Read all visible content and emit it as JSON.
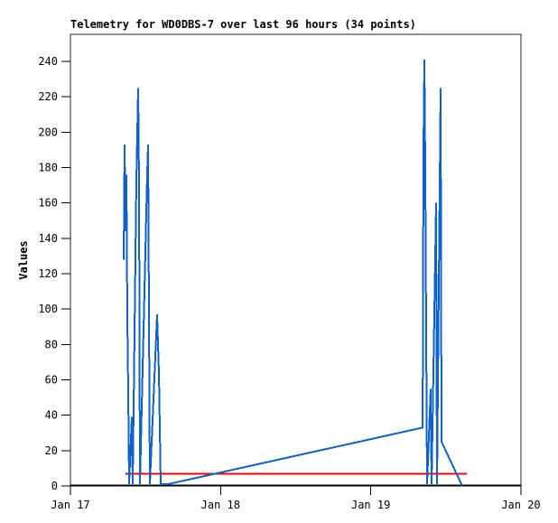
{
  "title": "Telemetry for WD0DBS-7 over last 96 hours (34 points)",
  "colors": {
    "background": "#ffffff",
    "frame": "#222222",
    "axis": "#000000",
    "series_blue": "#0d63c9",
    "threshold_red": "#ff0000",
    "text": "#000000"
  },
  "chart_data": {
    "type": "line",
    "title": "Telemetry for WD0DBS-7 over last 96 hours (34 points)",
    "xlabel": "",
    "ylabel": "Values",
    "ylim": [
      0,
      255
    ],
    "grid": false,
    "legend": "none",
    "y_ticks": [
      0,
      20,
      40,
      60,
      80,
      100,
      120,
      140,
      160,
      180,
      200,
      220,
      240
    ],
    "x_range_days": [
      0,
      3
    ],
    "x_ticks_days": [
      0,
      1,
      2,
      3
    ],
    "x_tick_labels": [
      "Jan 17",
      "Jan 18",
      "Jan 19",
      "Jan 20"
    ],
    "point_count": 34,
    "series": [
      {
        "name": "telemetry-values",
        "color": "#0d63c9",
        "points_day_value": [
          [
            0.355,
            128
          ],
          [
            0.361,
            193
          ],
          [
            0.367,
            144
          ],
          [
            0.373,
            176
          ],
          [
            0.379,
            95
          ],
          [
            0.385,
            54
          ],
          [
            0.391,
            1
          ],
          [
            0.409,
            39
          ],
          [
            0.415,
            1
          ],
          [
            0.439,
            172
          ],
          [
            0.451,
            225
          ],
          [
            0.457,
            171
          ],
          [
            0.463,
            1
          ],
          [
            0.511,
            176
          ],
          [
            0.517,
            193
          ],
          [
            0.529,
            1
          ],
          [
            0.577,
            97
          ],
          [
            0.589,
            64
          ],
          [
            0.601,
            1
          ],
          [
            0.649,
            1
          ],
          [
            2.345,
            33
          ],
          [
            2.351,
            189
          ],
          [
            2.357,
            241
          ],
          [
            2.363,
            180
          ],
          [
            2.369,
            86
          ],
          [
            2.375,
            1
          ],
          [
            2.399,
            55
          ],
          [
            2.405,
            1
          ],
          [
            2.435,
            160
          ],
          [
            2.441,
            1
          ],
          [
            2.459,
            169
          ],
          [
            2.465,
            225
          ],
          [
            2.471,
            25
          ],
          [
            2.609,
            0
          ]
        ]
      },
      {
        "name": "threshold-line",
        "type": "hline",
        "color": "#ff0000",
        "value": 7,
        "x_span_days": [
          0.367,
          2.639
        ]
      }
    ]
  }
}
